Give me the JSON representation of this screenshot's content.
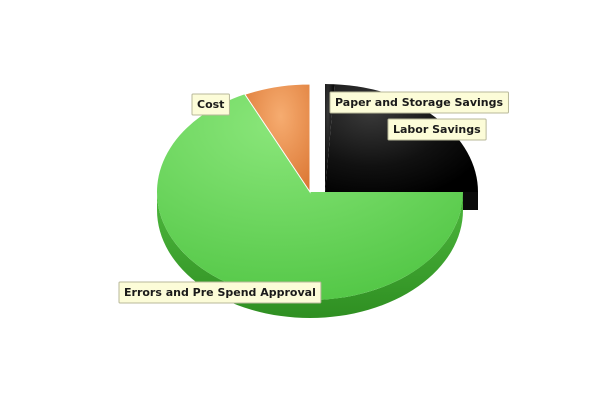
{
  "chart_data": {
    "type": "pie",
    "style": "3d-exploded",
    "title": "",
    "legend": "none",
    "slices": [
      {
        "label": "Paper and Storage Savings",
        "value": 1,
        "color": "#1a1a1a"
      },
      {
        "label": "Labor Savings",
        "value": 24,
        "color": "#1c1c1c"
      },
      {
        "label": "Errors and Pre Spend Approval",
        "value": 68,
        "color": "#6cd760"
      },
      {
        "label": "Cost",
        "value": 7,
        "color": "#f0944c"
      }
    ],
    "colors": {
      "label_background": "#fcfcd8",
      "label_border": "#b8b89a"
    }
  }
}
